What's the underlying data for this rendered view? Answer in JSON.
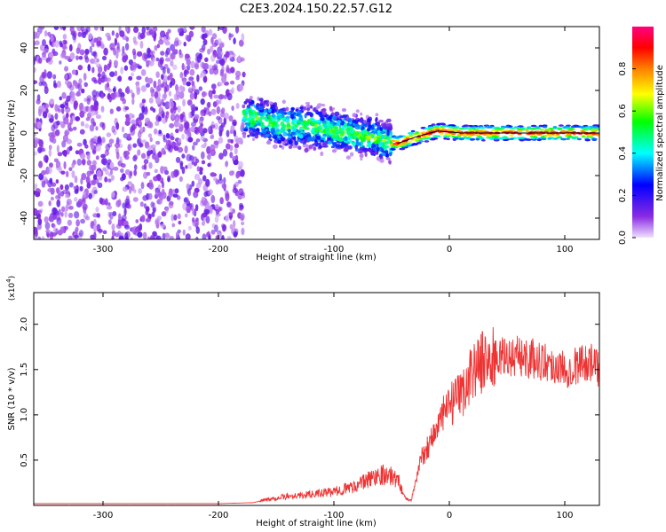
{
  "title": "C2E3.2024.150.22.57.G12",
  "chart_data": [
    {
      "type": "heatmap",
      "xlabel": "Height of straight line (km)",
      "ylabel": "Frequency (Hz)",
      "xlim": [
        -360,
        130
      ],
      "ylim": [
        -50,
        50
      ],
      "x_ticks": [
        "-300",
        "-200",
        "-100",
        "0",
        "100"
      ],
      "y_ticks": [
        "-40",
        "-20",
        "0",
        "20",
        "40"
      ],
      "colorbar": {
        "label": "Normalized spectral amplitude",
        "range": [
          0,
          1
        ],
        "ticks": [
          "0.0",
          "0.2",
          "0.4",
          "0.6",
          "0.8"
        ],
        "colors": [
          "#f0e0ff",
          "#8a2be2",
          "#0000ff",
          "#00ffff",
          "#00ff00",
          "#ffff00",
          "#ff8000",
          "#ff0000",
          "#ff0080"
        ]
      },
      "regions": [
        {
          "x": [
            -360,
            -178
          ],
          "freq_range": [
            -50,
            50
          ],
          "level": 0.25
        },
        {
          "x": [
            -178,
            -50
          ],
          "freq_range": [
            -15,
            12
          ],
          "level": 0.45
        },
        {
          "x": [
            -50,
            130
          ],
          "freq_range": [
            -3,
            3
          ],
          "level": 0.9
        }
      ],
      "ridge": [
        [
          -178,
          8
        ],
        [
          -150,
          4
        ],
        [
          -120,
          3
        ],
        [
          -90,
          0
        ],
        [
          -60,
          -3
        ],
        [
          -45,
          -5
        ],
        [
          -30,
          -2
        ],
        [
          -10,
          1
        ],
        [
          10,
          0
        ],
        [
          60,
          0
        ],
        [
          100,
          0
        ],
        [
          130,
          0
        ]
      ]
    },
    {
      "type": "line",
      "xlabel": "Height of straight line (km)",
      "ylabel": "SNR (10 * v/v)",
      "y_multiplier": "(x10^4)",
      "xlim": [
        -360,
        130
      ],
      "ylim": [
        0,
        2.35
      ],
      "x_ticks": [
        "-300",
        "-200",
        "-100",
        "0",
        "100"
      ],
      "y_ticks": [
        "0.5",
        "1.0",
        "1.5",
        "2.0"
      ],
      "color": "#ee3333",
      "x": [
        -360,
        -300,
        -250,
        -200,
        -170,
        -160,
        -140,
        -120,
        -100,
        -80,
        -60,
        -45,
        -38,
        -33,
        -25,
        -15,
        -5,
        0,
        10,
        20,
        30,
        40,
        60,
        80,
        100,
        120,
        130
      ],
      "y": [
        0.02,
        0.02,
        0.02,
        0.02,
        0.03,
        0.06,
        0.1,
        0.12,
        0.15,
        0.22,
        0.35,
        0.3,
        0.08,
        0.05,
        0.5,
        0.75,
        1.0,
        1.1,
        1.2,
        1.5,
        1.6,
        1.62,
        1.65,
        1.6,
        1.5,
        1.6,
        1.5
      ]
    }
  ]
}
